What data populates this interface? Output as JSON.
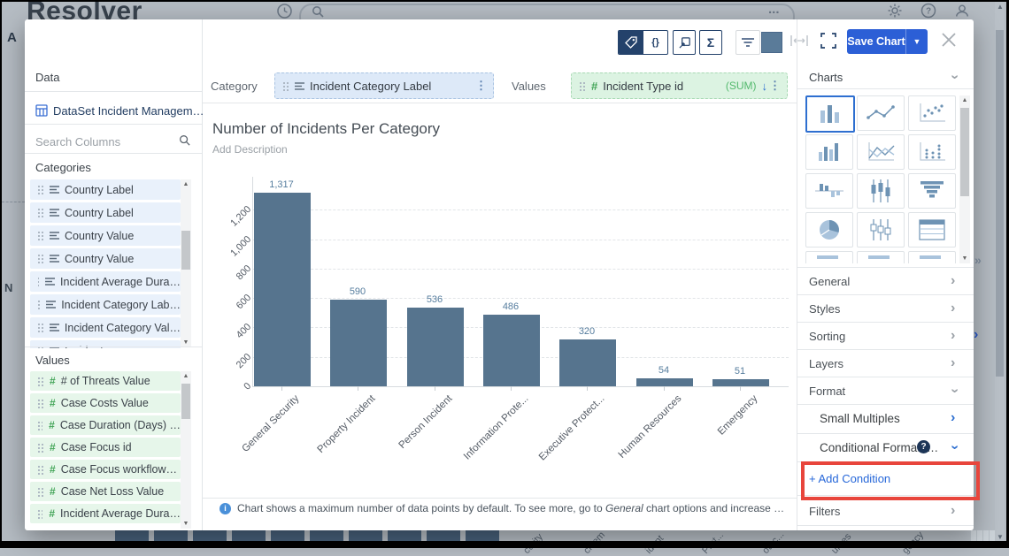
{
  "background": {
    "brand": "Resolver",
    "nav_fragment": "A",
    "title_fragment": "N",
    "search_dots": "...",
    "panel_collapse": "»",
    "panel_expand": "›",
    "axis_fragments": [
      "curity",
      "cidem",
      "ident",
      "Prot...",
      "otec...",
      "urces",
      "gency"
    ]
  },
  "modal": {
    "toolbar": {
      "braces_label": "{}",
      "sigma_label": "Σ",
      "save_chart_label": "Save Chart",
      "swatch_color": "#5a7b99"
    },
    "builder": {
      "category_label": "Category",
      "category_pill": {
        "name": "Incident Category Label"
      },
      "values_label": "Values",
      "values_pill": {
        "name": "Incident Type id",
        "aggregation": "(SUM)"
      }
    },
    "left_panel": {
      "title": "Data",
      "dataset_name": "DataSet Incident Managem…",
      "search_placeholder": "Search Columns",
      "categories_label": "Categories",
      "categories": [
        "Country Label",
        "Country Label",
        "Country Value",
        "Country Value",
        "Incident Average Dura…",
        "Incident Category Lab…",
        "Incident Category Val…",
        "Incident…"
      ],
      "values_label": "Values",
      "values": [
        "# of Threats Value",
        "Case Costs Value",
        "Case Duration (Days) …",
        "Case Focus id",
        "Case Focus workflow…",
        "Case Net Loss Value",
        "Incident Average Dura…"
      ]
    },
    "chart_header": {
      "title": "Number of Incidents Per Category",
      "description_placeholder": "Add Description"
    },
    "footer": {
      "notice_prefix": "Chart shows a maximum number of data points by default. To see more, go to ",
      "notice_italic": "General",
      "notice_suffix": " chart options and increase …"
    },
    "right_panel": {
      "charts_label": "Charts",
      "chart_types": [
        "column",
        "line",
        "scatter",
        "grouped-column",
        "multi-line",
        "dot-column",
        "diverging-column",
        "candlestick",
        "funnel",
        "pie",
        "box-plot",
        "table",
        "horizontal-bar",
        "stacked-bar",
        "area"
      ],
      "selected_chart_index": 0,
      "sections": [
        {
          "label": "General",
          "state": "collapsed"
        },
        {
          "label": "Styles",
          "state": "collapsed"
        },
        {
          "label": "Sorting",
          "state": "collapsed"
        },
        {
          "label": "Layers",
          "state": "collapsed"
        },
        {
          "label": "Format",
          "state": "expanded"
        }
      ],
      "format_items": [
        {
          "label": "Small Multiples",
          "chevron": "right"
        },
        {
          "label": "Conditional Formatti…",
          "chevron": "down",
          "help_badge": "?"
        }
      ],
      "add_condition_label": "+ Add Condition",
      "filters_label": "Filters"
    }
  },
  "chart_data": {
    "type": "bar",
    "title": "Number of Incidents Per Category",
    "categories": [
      "General Security",
      "Property Incident",
      "Person Incident",
      "Information Prote...",
      "Executive Protect...",
      "Human Resources",
      "Emergency"
    ],
    "values": [
      1317,
      590,
      536,
      486,
      320,
      54,
      51
    ],
    "value_labels": [
      "1,317",
      "590",
      "536",
      "486",
      "320",
      "54",
      "51"
    ],
    "xlabel": "",
    "ylabel": "",
    "ylim": [
      0,
      1317
    ],
    "yticks": [
      0,
      200,
      400,
      600,
      800,
      1000,
      1200
    ],
    "ytick_labels": [
      "0",
      "200",
      "400",
      "600",
      "800",
      "1,000",
      "1,200"
    ],
    "grid": "horizontal-dashed",
    "legend": "none",
    "bar_color": "#56748e",
    "value_label_color": "#567d9e"
  }
}
